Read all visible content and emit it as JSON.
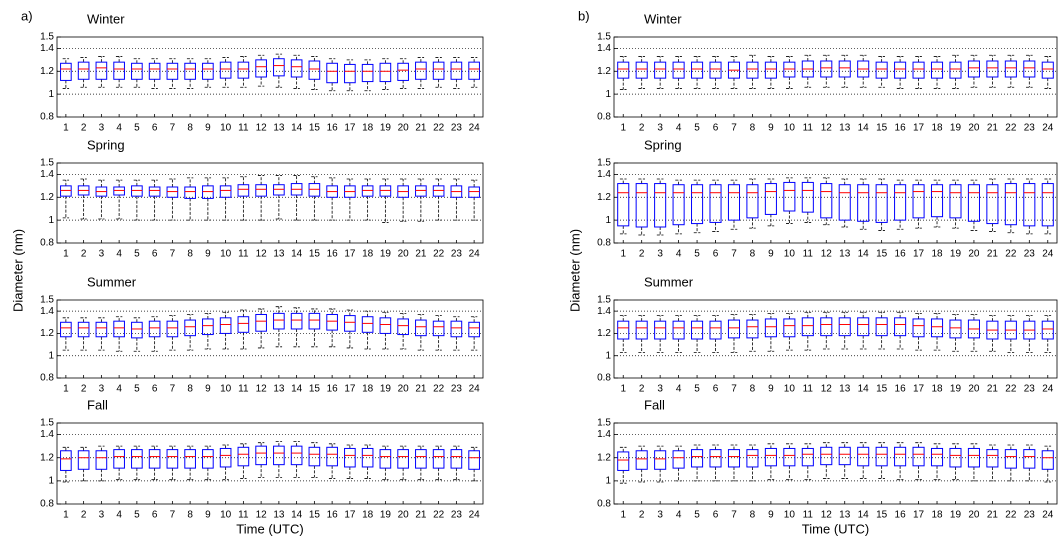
{
  "chart_data": [
    {
      "type": "box",
      "panel_label": "a)",
      "title": "Winter",
      "categories": [
        "1",
        "2",
        "3",
        "4",
        "5",
        "6",
        "7",
        "8",
        "9",
        "10",
        "11",
        "12",
        "13",
        "14",
        "15",
        "16",
        "17",
        "18",
        "19",
        "20",
        "21",
        "22",
        "23",
        "24"
      ],
      "whisker_low": [
        1.05,
        1.06,
        1.06,
        1.06,
        1.06,
        1.05,
        1.05,
        1.05,
        1.06,
        1.06,
        1.06,
        1.07,
        1.06,
        1.05,
        1.04,
        1.03,
        1.03,
        1.03,
        1.04,
        1.05,
        1.05,
        1.06,
        1.05,
        1.06
      ],
      "q1": [
        1.12,
        1.13,
        1.13,
        1.13,
        1.13,
        1.13,
        1.13,
        1.13,
        1.13,
        1.14,
        1.14,
        1.15,
        1.16,
        1.15,
        1.13,
        1.1,
        1.1,
        1.11,
        1.11,
        1.12,
        1.13,
        1.13,
        1.13,
        1.13
      ],
      "median": [
        1.22,
        1.22,
        1.23,
        1.22,
        1.22,
        1.22,
        1.22,
        1.22,
        1.22,
        1.22,
        1.22,
        1.24,
        1.25,
        1.24,
        1.22,
        1.2,
        1.2,
        1.2,
        1.2,
        1.21,
        1.22,
        1.22,
        1.22,
        1.22
      ],
      "q3": [
        1.27,
        1.28,
        1.28,
        1.28,
        1.27,
        1.27,
        1.27,
        1.27,
        1.27,
        1.28,
        1.28,
        1.3,
        1.31,
        1.3,
        1.29,
        1.27,
        1.26,
        1.26,
        1.27,
        1.27,
        1.28,
        1.28,
        1.28,
        1.28
      ],
      "whisker_high": [
        1.31,
        1.32,
        1.33,
        1.33,
        1.31,
        1.31,
        1.31,
        1.31,
        1.31,
        1.32,
        1.33,
        1.34,
        1.35,
        1.34,
        1.33,
        1.31,
        1.3,
        1.3,
        1.31,
        1.31,
        1.32,
        1.32,
        1.32,
        1.32
      ],
      "ylim": [
        0.8,
        1.5
      ],
      "yticks": [
        0.8,
        1,
        1.2,
        1.4,
        1.5
      ],
      "grid": true,
      "box_color": "#0000ff",
      "median_color": "#ff0000"
    },
    {
      "type": "box",
      "title": "Spring",
      "ylabel": "Diameter (nm)",
      "categories": [
        "1",
        "2",
        "3",
        "4",
        "5",
        "6",
        "7",
        "8",
        "9",
        "10",
        "11",
        "12",
        "13",
        "14",
        "15",
        "16",
        "17",
        "18",
        "19",
        "20",
        "21",
        "22",
        "23",
        "24"
      ],
      "whisker_low": [
        1.02,
        1.01,
        1.01,
        1.01,
        1.0,
        1.0,
        1.0,
        1.0,
        1.0,
        1.0,
        1.0,
        1.0,
        1.01,
        1.0,
        1.0,
        1.0,
        1.0,
        1.0,
        0.98,
        0.99,
        0.99,
        1.0,
        1.0,
        1.0
      ],
      "q1": [
        1.21,
        1.22,
        1.21,
        1.22,
        1.21,
        1.21,
        1.2,
        1.19,
        1.19,
        1.2,
        1.21,
        1.21,
        1.22,
        1.22,
        1.21,
        1.2,
        1.2,
        1.21,
        1.21,
        1.2,
        1.21,
        1.21,
        1.2,
        1.2
      ],
      "median": [
        1.26,
        1.26,
        1.25,
        1.26,
        1.26,
        1.26,
        1.25,
        1.25,
        1.25,
        1.26,
        1.27,
        1.27,
        1.27,
        1.27,
        1.27,
        1.25,
        1.25,
        1.26,
        1.26,
        1.25,
        1.26,
        1.26,
        1.25,
        1.25
      ],
      "q3": [
        1.3,
        1.3,
        1.29,
        1.29,
        1.3,
        1.29,
        1.29,
        1.29,
        1.3,
        1.3,
        1.31,
        1.31,
        1.31,
        1.32,
        1.32,
        1.3,
        1.3,
        1.3,
        1.3,
        1.3,
        1.3,
        1.3,
        1.3,
        1.29
      ],
      "whisker_high": [
        1.35,
        1.36,
        1.35,
        1.35,
        1.35,
        1.35,
        1.36,
        1.37,
        1.37,
        1.37,
        1.38,
        1.39,
        1.39,
        1.39,
        1.38,
        1.37,
        1.36,
        1.36,
        1.36,
        1.36,
        1.36,
        1.36,
        1.36,
        1.35
      ],
      "ylim": [
        0.8,
        1.5
      ],
      "yticks": [
        0.8,
        1,
        1.2,
        1.4,
        1.5
      ],
      "grid": true,
      "box_color": "#0000ff",
      "median_color": "#ff0000"
    },
    {
      "type": "box",
      "title": "Summer",
      "categories": [
        "1",
        "2",
        "3",
        "4",
        "5",
        "6",
        "7",
        "8",
        "9",
        "10",
        "11",
        "12",
        "13",
        "14",
        "15",
        "16",
        "17",
        "18",
        "19",
        "20",
        "21",
        "22",
        "23",
        "24"
      ],
      "whisker_low": [
        1.05,
        1.05,
        1.05,
        1.04,
        1.04,
        1.04,
        1.05,
        1.05,
        1.06,
        1.06,
        1.06,
        1.07,
        1.08,
        1.08,
        1.08,
        1.08,
        1.07,
        1.06,
        1.06,
        1.06,
        1.05,
        1.05,
        1.05,
        1.05
      ],
      "q1": [
        1.17,
        1.17,
        1.17,
        1.17,
        1.16,
        1.17,
        1.17,
        1.18,
        1.19,
        1.2,
        1.21,
        1.22,
        1.24,
        1.24,
        1.24,
        1.23,
        1.22,
        1.21,
        1.2,
        1.19,
        1.18,
        1.18,
        1.17,
        1.17
      ],
      "median": [
        1.25,
        1.25,
        1.25,
        1.25,
        1.24,
        1.25,
        1.25,
        1.26,
        1.27,
        1.28,
        1.29,
        1.31,
        1.32,
        1.32,
        1.32,
        1.31,
        1.3,
        1.29,
        1.28,
        1.27,
        1.26,
        1.26,
        1.25,
        1.25
      ],
      "q3": [
        1.3,
        1.3,
        1.3,
        1.31,
        1.3,
        1.31,
        1.31,
        1.32,
        1.33,
        1.34,
        1.35,
        1.37,
        1.38,
        1.38,
        1.38,
        1.37,
        1.36,
        1.35,
        1.34,
        1.33,
        1.32,
        1.31,
        1.31,
        1.3
      ],
      "whisker_high": [
        1.34,
        1.34,
        1.34,
        1.35,
        1.34,
        1.35,
        1.36,
        1.37,
        1.38,
        1.39,
        1.41,
        1.42,
        1.44,
        1.43,
        1.42,
        1.42,
        1.41,
        1.4,
        1.39,
        1.38,
        1.37,
        1.36,
        1.35,
        1.35
      ],
      "ylim": [
        0.8,
        1.5
      ],
      "yticks": [
        0.8,
        1,
        1.2,
        1.4,
        1.5
      ],
      "grid": true,
      "box_color": "#0000ff",
      "median_color": "#ff0000"
    },
    {
      "type": "box",
      "title": "Fall",
      "xlabel": "Time (UTC)",
      "categories": [
        "1",
        "2",
        "3",
        "4",
        "5",
        "6",
        "7",
        "8",
        "9",
        "10",
        "11",
        "12",
        "13",
        "14",
        "15",
        "16",
        "17",
        "18",
        "19",
        "20",
        "21",
        "22",
        "23",
        "24"
      ],
      "whisker_low": [
        0.99,
        1.0,
        1.0,
        1.01,
        1.01,
        1.01,
        1.01,
        1.01,
        1.01,
        1.01,
        1.02,
        1.03,
        1.03,
        1.03,
        1.03,
        1.02,
        1.02,
        1.02,
        1.01,
        1.01,
        1.01,
        1.01,
        1.01,
        1.0
      ],
      "q1": [
        1.09,
        1.1,
        1.1,
        1.11,
        1.11,
        1.11,
        1.11,
        1.11,
        1.11,
        1.12,
        1.13,
        1.14,
        1.14,
        1.14,
        1.13,
        1.13,
        1.12,
        1.12,
        1.11,
        1.11,
        1.11,
        1.11,
        1.11,
        1.1
      ],
      "median": [
        1.19,
        1.2,
        1.2,
        1.21,
        1.21,
        1.21,
        1.21,
        1.21,
        1.21,
        1.22,
        1.23,
        1.24,
        1.24,
        1.24,
        1.23,
        1.23,
        1.22,
        1.22,
        1.21,
        1.21,
        1.21,
        1.21,
        1.21,
        1.2
      ],
      "q3": [
        1.26,
        1.26,
        1.26,
        1.27,
        1.27,
        1.27,
        1.27,
        1.27,
        1.27,
        1.28,
        1.29,
        1.3,
        1.3,
        1.3,
        1.29,
        1.29,
        1.28,
        1.28,
        1.27,
        1.27,
        1.27,
        1.27,
        1.27,
        1.26
      ],
      "whisker_high": [
        1.29,
        1.29,
        1.3,
        1.3,
        1.3,
        1.3,
        1.3,
        1.3,
        1.3,
        1.31,
        1.32,
        1.33,
        1.34,
        1.34,
        1.33,
        1.32,
        1.31,
        1.31,
        1.3,
        1.3,
        1.3,
        1.3,
        1.3,
        1.29
      ],
      "ylim": [
        0.8,
        1.5
      ],
      "yticks": [
        0.8,
        1,
        1.2,
        1.4,
        1.5
      ],
      "grid": true,
      "box_color": "#0000ff",
      "median_color": "#ff0000"
    },
    {
      "type": "box",
      "panel_label": "b)",
      "title": "Winter",
      "categories": [
        "1",
        "2",
        "3",
        "4",
        "5",
        "6",
        "7",
        "8",
        "9",
        "10",
        "11",
        "12",
        "13",
        "14",
        "15",
        "16",
        "17",
        "18",
        "19",
        "20",
        "21",
        "22",
        "23",
        "24"
      ],
      "whisker_low": [
        1.04,
        1.05,
        1.05,
        1.05,
        1.05,
        1.05,
        1.05,
        1.05,
        1.05,
        1.05,
        1.06,
        1.06,
        1.06,
        1.06,
        1.06,
        1.05,
        1.05,
        1.05,
        1.05,
        1.06,
        1.06,
        1.06,
        1.06,
        1.05
      ],
      "q1": [
        1.14,
        1.14,
        1.14,
        1.14,
        1.14,
        1.14,
        1.14,
        1.14,
        1.14,
        1.15,
        1.15,
        1.15,
        1.15,
        1.15,
        1.14,
        1.14,
        1.14,
        1.14,
        1.14,
        1.15,
        1.15,
        1.15,
        1.15,
        1.14
      ],
      "median": [
        1.22,
        1.22,
        1.22,
        1.22,
        1.22,
        1.22,
        1.21,
        1.22,
        1.22,
        1.22,
        1.22,
        1.23,
        1.23,
        1.22,
        1.22,
        1.22,
        1.22,
        1.22,
        1.22,
        1.23,
        1.23,
        1.23,
        1.23,
        1.22
      ],
      "q3": [
        1.28,
        1.28,
        1.28,
        1.28,
        1.28,
        1.28,
        1.28,
        1.28,
        1.28,
        1.28,
        1.29,
        1.29,
        1.29,
        1.29,
        1.28,
        1.28,
        1.28,
        1.28,
        1.28,
        1.29,
        1.29,
        1.29,
        1.29,
        1.28
      ],
      "whisker_high": [
        1.33,
        1.33,
        1.33,
        1.33,
        1.33,
        1.33,
        1.33,
        1.34,
        1.33,
        1.33,
        1.34,
        1.34,
        1.34,
        1.34,
        1.33,
        1.33,
        1.33,
        1.33,
        1.34,
        1.34,
        1.34,
        1.34,
        1.34,
        1.33
      ],
      "ylim": [
        0.8,
        1.5
      ],
      "yticks": [
        0.8,
        1,
        1.2,
        1.4,
        1.5
      ],
      "grid": true,
      "box_color": "#0000ff",
      "median_color": "#ff0000"
    },
    {
      "type": "box",
      "title": "Spring",
      "ylabel": "Diameter (nm)",
      "categories": [
        "1",
        "2",
        "3",
        "4",
        "5",
        "6",
        "7",
        "8",
        "9",
        "10",
        "11",
        "12",
        "13",
        "14",
        "15",
        "16",
        "17",
        "18",
        "19",
        "20",
        "21",
        "22",
        "23",
        "24"
      ],
      "whisker_low": [
        0.88,
        0.87,
        0.87,
        0.88,
        0.89,
        0.9,
        0.92,
        0.93,
        0.95,
        0.97,
        0.98,
        0.96,
        0.94,
        0.92,
        0.91,
        0.92,
        0.93,
        0.94,
        0.93,
        0.91,
        0.9,
        0.89,
        0.88,
        0.88
      ],
      "q1": [
        0.95,
        0.94,
        0.94,
        0.96,
        0.97,
        0.98,
        1.0,
        1.02,
        1.05,
        1.08,
        1.07,
        1.02,
        1.0,
        0.99,
        0.98,
        1.0,
        1.02,
        1.03,
        1.02,
        0.99,
        0.97,
        0.96,
        0.95,
        0.95
      ],
      "median": [
        1.24,
        1.24,
        1.24,
        1.24,
        1.24,
        1.24,
        1.24,
        1.24,
        1.25,
        1.26,
        1.26,
        1.25,
        1.24,
        1.24,
        1.24,
        1.24,
        1.25,
        1.25,
        1.24,
        1.24,
        1.24,
        1.24,
        1.24,
        1.24
      ],
      "q3": [
        1.32,
        1.32,
        1.32,
        1.31,
        1.31,
        1.31,
        1.31,
        1.31,
        1.32,
        1.33,
        1.33,
        1.32,
        1.31,
        1.31,
        1.31,
        1.31,
        1.31,
        1.31,
        1.31,
        1.31,
        1.31,
        1.32,
        1.32,
        1.32
      ],
      "whisker_high": [
        1.36,
        1.36,
        1.36,
        1.35,
        1.35,
        1.35,
        1.35,
        1.36,
        1.36,
        1.37,
        1.37,
        1.37,
        1.36,
        1.36,
        1.36,
        1.35,
        1.35,
        1.35,
        1.35,
        1.35,
        1.36,
        1.36,
        1.36,
        1.36
      ],
      "ylim": [
        0.8,
        1.5
      ],
      "yticks": [
        0.8,
        1,
        1.2,
        1.4,
        1.5
      ],
      "grid": true,
      "box_color": "#0000ff",
      "median_color": "#ff0000"
    },
    {
      "type": "box",
      "title": "Summer",
      "categories": [
        "1",
        "2",
        "3",
        "4",
        "5",
        "6",
        "7",
        "8",
        "9",
        "10",
        "11",
        "12",
        "13",
        "14",
        "15",
        "16",
        "17",
        "18",
        "19",
        "20",
        "21",
        "22",
        "23",
        "24"
      ],
      "whisker_low": [
        1.03,
        1.03,
        1.03,
        1.03,
        1.03,
        1.03,
        1.03,
        1.04,
        1.04,
        1.05,
        1.05,
        1.06,
        1.06,
        1.06,
        1.06,
        1.06,
        1.05,
        1.05,
        1.04,
        1.04,
        1.04,
        1.03,
        1.03,
        1.03
      ],
      "q1": [
        1.15,
        1.15,
        1.15,
        1.15,
        1.15,
        1.15,
        1.16,
        1.16,
        1.17,
        1.17,
        1.18,
        1.18,
        1.18,
        1.18,
        1.18,
        1.18,
        1.17,
        1.17,
        1.16,
        1.16,
        1.15,
        1.15,
        1.15,
        1.15
      ],
      "median": [
        1.25,
        1.25,
        1.25,
        1.25,
        1.25,
        1.25,
        1.25,
        1.26,
        1.26,
        1.27,
        1.27,
        1.28,
        1.28,
        1.28,
        1.28,
        1.28,
        1.27,
        1.26,
        1.25,
        1.24,
        1.23,
        1.23,
        1.23,
        1.24
      ],
      "q3": [
        1.31,
        1.31,
        1.31,
        1.31,
        1.31,
        1.31,
        1.32,
        1.32,
        1.33,
        1.33,
        1.34,
        1.34,
        1.34,
        1.34,
        1.34,
        1.34,
        1.33,
        1.33,
        1.32,
        1.32,
        1.31,
        1.31,
        1.31,
        1.31
      ],
      "whisker_high": [
        1.36,
        1.36,
        1.36,
        1.36,
        1.36,
        1.36,
        1.37,
        1.37,
        1.38,
        1.38,
        1.39,
        1.39,
        1.39,
        1.39,
        1.39,
        1.39,
        1.38,
        1.38,
        1.37,
        1.37,
        1.36,
        1.36,
        1.36,
        1.36
      ],
      "ylim": [
        0.8,
        1.5
      ],
      "yticks": [
        0.8,
        1,
        1.2,
        1.4,
        1.5
      ],
      "grid": true,
      "box_color": "#0000ff",
      "median_color": "#ff0000"
    },
    {
      "type": "box",
      "title": "Fall",
      "xlabel": "Time (UTC)",
      "categories": [
        "1",
        "2",
        "3",
        "4",
        "5",
        "6",
        "7",
        "8",
        "9",
        "10",
        "11",
        "12",
        "13",
        "14",
        "15",
        "16",
        "17",
        "18",
        "19",
        "20",
        "21",
        "22",
        "23",
        "24"
      ],
      "whisker_low": [
        0.98,
        0.99,
        0.99,
        1.0,
        1.0,
        1.0,
        1.0,
        1.0,
        1.01,
        1.01,
        1.01,
        1.02,
        1.02,
        1.02,
        1.02,
        1.01,
        1.01,
        1.01,
        1.01,
        1.0,
        1.0,
        1.0,
        1.0,
        0.99
      ],
      "q1": [
        1.09,
        1.1,
        1.1,
        1.11,
        1.12,
        1.12,
        1.12,
        1.12,
        1.13,
        1.13,
        1.13,
        1.14,
        1.14,
        1.13,
        1.13,
        1.13,
        1.13,
        1.13,
        1.12,
        1.12,
        1.12,
        1.11,
        1.11,
        1.1
      ],
      "median": [
        1.18,
        1.19,
        1.19,
        1.2,
        1.21,
        1.21,
        1.21,
        1.22,
        1.22,
        1.22,
        1.23,
        1.23,
        1.23,
        1.23,
        1.23,
        1.23,
        1.23,
        1.23,
        1.22,
        1.22,
        1.22,
        1.21,
        1.21,
        1.2
      ],
      "q3": [
        1.25,
        1.26,
        1.26,
        1.26,
        1.27,
        1.27,
        1.27,
        1.27,
        1.28,
        1.28,
        1.28,
        1.29,
        1.29,
        1.29,
        1.29,
        1.29,
        1.29,
        1.28,
        1.28,
        1.28,
        1.27,
        1.27,
        1.27,
        1.26
      ],
      "whisker_high": [
        1.29,
        1.3,
        1.3,
        1.3,
        1.31,
        1.31,
        1.31,
        1.31,
        1.32,
        1.32,
        1.32,
        1.33,
        1.33,
        1.33,
        1.33,
        1.33,
        1.33,
        1.32,
        1.32,
        1.32,
        1.31,
        1.31,
        1.31,
        1.3
      ],
      "ylim": [
        0.8,
        1.5
      ],
      "yticks": [
        0.8,
        1,
        1.2,
        1.4,
        1.5
      ],
      "grid": true,
      "box_color": "#0000ff",
      "median_color": "#ff0000"
    }
  ]
}
